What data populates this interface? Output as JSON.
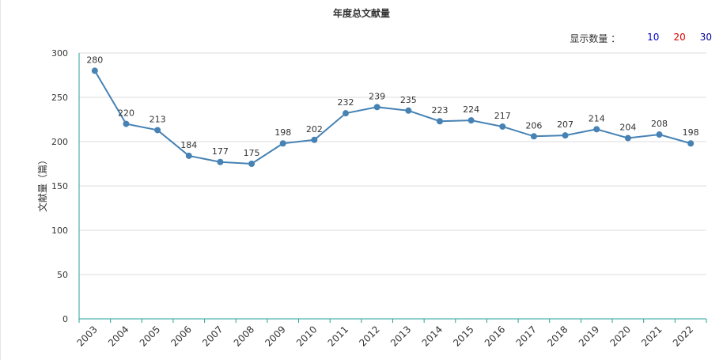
{
  "chart_data": {
    "type": "line",
    "title": "年度总文献量",
    "xlabel": "",
    "ylabel": "文献量（篇）",
    "ylim": [
      0,
      300
    ],
    "yticks": [
      0,
      50,
      100,
      150,
      200,
      250,
      300
    ],
    "grid": true,
    "legend": "none",
    "line_color": "#4682b4",
    "categories": [
      "2003",
      "2004",
      "2005",
      "2006",
      "2007",
      "2008",
      "2009",
      "2010",
      "2011",
      "2012",
      "2013",
      "2014",
      "2015",
      "2016",
      "2017",
      "2018",
      "2019",
      "2020",
      "2021",
      "2022"
    ],
    "series": [
      {
        "values": [
          280,
          220,
          213,
          184,
          177,
          175,
          198,
          202,
          232,
          239,
          235,
          223,
          224,
          217,
          206,
          207,
          214,
          204,
          208,
          198
        ]
      }
    ]
  },
  "count_selector": {
    "label": "显示数量 ：",
    "options": [
      {
        "text": "10",
        "color": "#0000cc"
      },
      {
        "text": "20",
        "color": "#dd0000"
      },
      {
        "text": "30",
        "color": "#000099"
      }
    ]
  }
}
